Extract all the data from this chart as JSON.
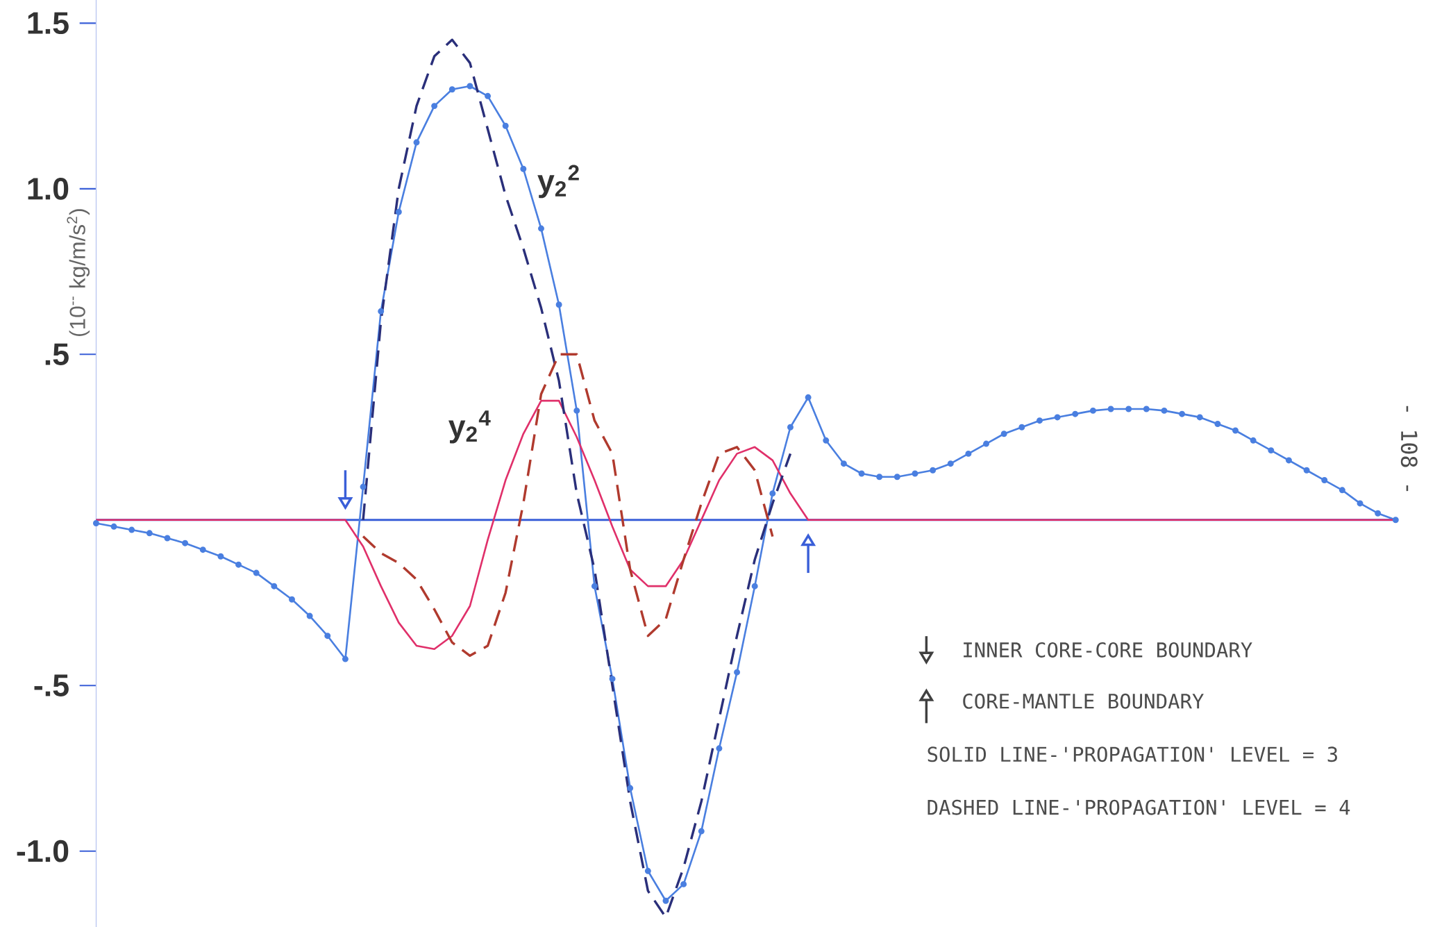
{
  "chart_data": {
    "type": "line",
    "ylabel": "(10$^{--}$ kg/m/s$^{2}$)",
    "categories": [
      null,
      null,
      null,
      null,
      null,
      null,
      null,
      null,
      null,
      null,
      null,
      null,
      null,
      null,
      null,
      null,
      null,
      null,
      null,
      null,
      null,
      null,
      null,
      null,
      null,
      null,
      null,
      null,
      null,
      null,
      null,
      null,
      null,
      null,
      null,
      null,
      null,
      null,
      null,
      null,
      null,
      null,
      null,
      null,
      null,
      null,
      null,
      null,
      null,
      null,
      null,
      null,
      null,
      null,
      null,
      null,
      null,
      null,
      null,
      null,
      null,
      null,
      null,
      null,
      null,
      null,
      null,
      null,
      null,
      null,
      null,
      null,
      null,
      null
    ],
    "ylim": [
      -1.23,
      1.57
    ],
    "yticks": [
      {
        "value": -1.0,
        "label": "-1.0"
      },
      {
        "value": -0.5,
        "label": "-.5"
      },
      {
        "value": 0.5,
        "label": ".5"
      },
      {
        "value": 1.0,
        "label": "1.0"
      },
      {
        "value": 1.5,
        "label": "1.5"
      }
    ],
    "series": [
      {
        "name": "y$_{2}$$^{2}$",
        "color": "#4a7fe0",
        "marker": "circle",
        "line_style": "solid",
        "values": [
          -0.01,
          -0.02,
          -0.03,
          -0.04,
          -0.055,
          -0.07,
          -0.09,
          -0.11,
          -0.135,
          -0.16,
          -0.2,
          -0.24,
          -0.29,
          -0.35,
          -0.42,
          0.1,
          0.63,
          0.93,
          1.14,
          1.25,
          1.3,
          1.31,
          1.28,
          1.19,
          1.06,
          0.88,
          0.65,
          0.33,
          -0.2,
          -0.48,
          -0.81,
          -1.06,
          -1.15,
          -1.1,
          -0.94,
          -0.69,
          -0.46,
          -0.2,
          0.08,
          0.28,
          0.37,
          0.24,
          0.17,
          0.14,
          0.13,
          0.13,
          0.14,
          0.15,
          0.17,
          0.2,
          0.23,
          0.26,
          0.28,
          0.3,
          0.31,
          0.32,
          0.33,
          0.335,
          0.335,
          0.335,
          0.33,
          0.32,
          0.31,
          0.29,
          0.27,
          0.24,
          0.21,
          0.18,
          0.15,
          0.12,
          0.09,
          0.05,
          0.02,
          0
        ]
      },
      {
        "name": "y$_{2}$$^{4}$",
        "color": "#e0306a",
        "marker": "none",
        "line_style": "solid",
        "values": [
          0,
          0,
          0,
          0,
          0,
          0,
          0,
          0,
          0,
          0,
          0,
          0,
          0,
          0,
          0,
          -0.08,
          -0.2,
          -0.31,
          -0.38,
          -0.39,
          -0.35,
          -0.26,
          -0.06,
          0.12,
          0.26,
          0.36,
          0.36,
          0.25,
          0.12,
          -0.02,
          -0.15,
          -0.2,
          -0.2,
          -0.12,
          0.0,
          0.12,
          0.2,
          0.22,
          0.18,
          0.08,
          0,
          0,
          0,
          0,
          0,
          0,
          0,
          0,
          0,
          0,
          0,
          0,
          0,
          0,
          0,
          0,
          0,
          0,
          0,
          0,
          0,
          0,
          0,
          0,
          0,
          0,
          0,
          0,
          0,
          0,
          0,
          0,
          0,
          0
        ]
      },
      {
        "color": "#2a2f7a",
        "marker": "none",
        "line_style": "dashed",
        "values": [
          null,
          null,
          null,
          null,
          null,
          null,
          null,
          null,
          null,
          null,
          null,
          null,
          null,
          null,
          null,
          0.0,
          0.6,
          1.0,
          1.25,
          1.4,
          1.45,
          1.38,
          1.18,
          0.98,
          0.82,
          0.64,
          0.42,
          0.08,
          -0.15,
          -0.5,
          -0.85,
          -1.12,
          -1.2,
          -1.05,
          -0.85,
          -0.6,
          -0.35,
          -0.12,
          0.05,
          0.2,
          null,
          null,
          null,
          null,
          null,
          null,
          null,
          null,
          null,
          null,
          null,
          null,
          null,
          null,
          null,
          null,
          null,
          null,
          null,
          null,
          null,
          null,
          null,
          null,
          null,
          null,
          null,
          null,
          null,
          null,
          null,
          null,
          null,
          null
        ]
      },
      {
        "color": "#b03a2e",
        "marker": "none",
        "line_style": "dashed",
        "values": [
          null,
          null,
          null,
          null,
          null,
          null,
          null,
          null,
          null,
          null,
          null,
          null,
          null,
          null,
          null,
          -0.05,
          -0.1,
          -0.13,
          -0.18,
          -0.27,
          -0.37,
          -0.41,
          -0.38,
          -0.22,
          0.05,
          0.38,
          0.5,
          0.5,
          0.3,
          0.2,
          -0.15,
          -0.35,
          -0.3,
          -0.12,
          0.05,
          0.2,
          0.22,
          0.15,
          -0.05,
          null,
          null,
          null,
          null,
          null,
          null,
          null,
          null,
          null,
          null,
          null,
          null,
          null,
          null,
          null,
          null,
          null,
          null,
          null,
          null,
          null,
          null,
          null,
          null,
          null,
          null,
          null,
          null,
          null,
          null,
          null,
          null,
          null,
          null,
          null
        ]
      }
    ],
    "ref_lines": [
      {
        "axis": "y",
        "value": 0,
        "color": "#3a5fd8"
      }
    ],
    "annotations": [
      "INNER CORE-CORE BOUNDARY",
      "CORE-MANTLE BOUNDARY",
      "SOLID LINE-'PROPAGATION' LEVEL = 3",
      "DASHED LINE-'PROPAGATION' LEVEL = 4",
      "- 108 -"
    ]
  }
}
